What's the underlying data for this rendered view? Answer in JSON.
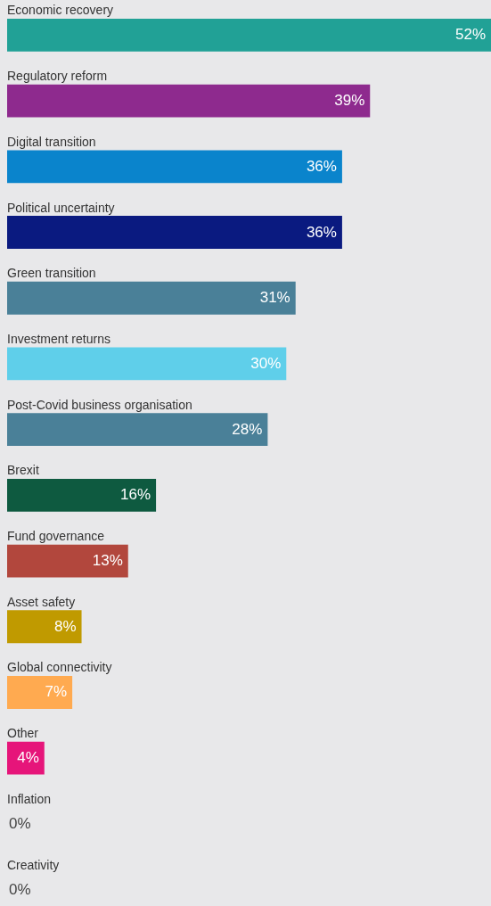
{
  "chart_data": {
    "type": "bar",
    "orientation": "horizontal",
    "categories": [
      "Economic recovery",
      "Regulatory reform",
      "Digital transition",
      "Political uncertainty",
      "Green transition",
      "Investment returns",
      "Post-Covid business organisation",
      "Brexit",
      "Fund governance",
      "Asset safety",
      "Global connectivity",
      "Other",
      "Inflation",
      "Creativity"
    ],
    "values": [
      52,
      39,
      36,
      36,
      31,
      30,
      28,
      16,
      13,
      8,
      7,
      4,
      0,
      0
    ],
    "value_labels": [
      "52%",
      "39%",
      "36%",
      "36%",
      "31%",
      "30%",
      "28%",
      "16%",
      "13%",
      "8%",
      "7%",
      "4%",
      "0%",
      "0%"
    ],
    "colors": [
      "#21a196",
      "#8e2a8e",
      "#0a84cc",
      "#0a1a80",
      "#4a8098",
      "#5fcfea",
      "#4a8098",
      "#0e5a40",
      "#b2473d",
      "#c09a00",
      "#ffaa50",
      "#e6157a",
      "#999999",
      "#999999"
    ]
  }
}
